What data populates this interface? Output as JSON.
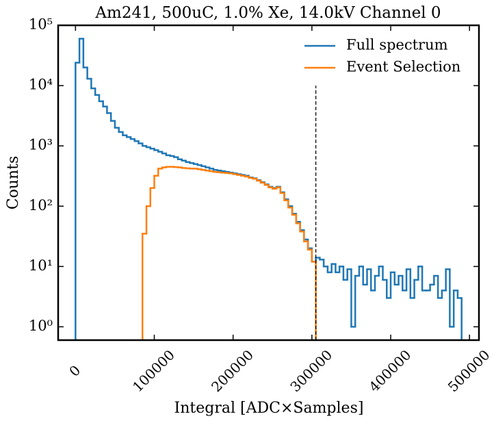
{
  "chart_data": {
    "type": "histogram",
    "title": "Am241, 500uC, 1.0% Xe, 14.0kV Channel 0",
    "x_label": "Integral [ADC×Samples]",
    "y_label": "Counts",
    "log_y": true,
    "legend": "upper right",
    "xlim": [
      -22000,
      512000
    ],
    "xticks": [
      0,
      100000,
      200000,
      300000,
      400000,
      500000
    ],
    "ylim": [
      0.6,
      100000
    ],
    "yticks": [
      {
        "value": 1,
        "label": "10⁰"
      },
      {
        "value": 10,
        "label": "10¹"
      },
      {
        "value": 100,
        "label": "10²"
      },
      {
        "value": 1000,
        "label": "10³"
      },
      {
        "value": 10000,
        "label": "10⁴"
      },
      {
        "value": 100000,
        "label": "10⁵"
      }
    ],
    "series": [
      {
        "name": "Full spectrum",
        "color": "#1f77b4",
        "bins": [
          0,
          5000,
          10000,
          15000,
          20000,
          25000,
          30000,
          35000,
          40000,
          45000,
          50000,
          55000,
          60000,
          65000,
          70000,
          75000,
          80000,
          85000,
          90000,
          95000,
          100000,
          105000,
          110000,
          115000,
          120000,
          125000,
          130000,
          135000,
          140000,
          145000,
          150000,
          155000,
          160000,
          165000,
          170000,
          175000,
          180000,
          185000,
          190000,
          195000,
          200000,
          205000,
          210000,
          215000,
          220000,
          225000,
          230000,
          235000,
          240000,
          245000,
          250000,
          255000,
          260000,
          265000,
          270000,
          275000,
          280000,
          285000,
          290000,
          295000,
          300000,
          305000,
          310000,
          315000,
          320000,
          325000,
          330000,
          335000,
          340000,
          345000,
          350000,
          355000,
          360000,
          365000,
          370000,
          375000,
          380000,
          385000,
          390000,
          395000,
          400000,
          405000,
          410000,
          415000,
          420000,
          425000,
          430000,
          435000,
          440000,
          445000,
          450000,
          455000,
          460000,
          465000,
          470000,
          475000,
          480000,
          485000,
          490000
        ],
        "values": [
          24000,
          60000,
          20000,
          13000,
          9000,
          7000,
          5500,
          4500,
          3500,
          2600,
          2000,
          1700,
          1500,
          1400,
          1300,
          1200,
          1100,
          1000,
          950,
          900,
          850,
          800,
          750,
          700,
          680,
          650,
          600,
          570,
          540,
          520,
          500,
          480,
          460,
          440,
          420,
          400,
          390,
          380,
          370,
          360,
          350,
          340,
          330,
          320,
          300,
          290,
          270,
          250,
          230,
          210,
          200,
          210,
          170,
          130,
          100,
          75,
          55,
          40,
          28,
          20,
          12,
          14,
          13,
          10,
          8,
          11,
          8,
          10,
          6,
          9,
          1,
          7,
          10,
          5,
          9,
          4,
          7,
          10,
          6,
          3,
          8,
          5,
          7,
          4,
          9,
          3,
          6,
          10,
          4,
          4,
          5,
          7,
          3,
          4,
          9,
          1,
          4,
          3
        ]
      },
      {
        "name": "Event Selection",
        "color": "#ff7f0e",
        "bins": [
          85000,
          90000,
          95000,
          100000,
          105000,
          110000,
          115000,
          120000,
          125000,
          130000,
          135000,
          140000,
          145000,
          150000,
          155000,
          160000,
          165000,
          170000,
          175000,
          180000,
          185000,
          190000,
          195000,
          200000,
          205000,
          210000,
          215000,
          220000,
          225000,
          230000,
          235000,
          240000,
          245000,
          250000,
          255000,
          260000,
          265000,
          270000,
          275000,
          280000,
          285000,
          290000,
          295000,
          300000,
          305000
        ],
        "values": [
          35,
          100,
          200,
          320,
          420,
          440,
          450,
          450,
          445,
          440,
          430,
          425,
          420,
          420,
          410,
          400,
          390,
          380,
          370,
          365,
          360,
          355,
          350,
          340,
          330,
          320,
          310,
          295,
          285,
          265,
          245,
          225,
          205,
          195,
          205,
          165,
          125,
          95,
          72,
          52,
          38,
          26,
          19,
          12
        ]
      }
    ],
    "vlines": [
      {
        "x": 305000,
        "ymax": 10000,
        "color": "#000000",
        "style": "dashed"
      }
    ]
  }
}
